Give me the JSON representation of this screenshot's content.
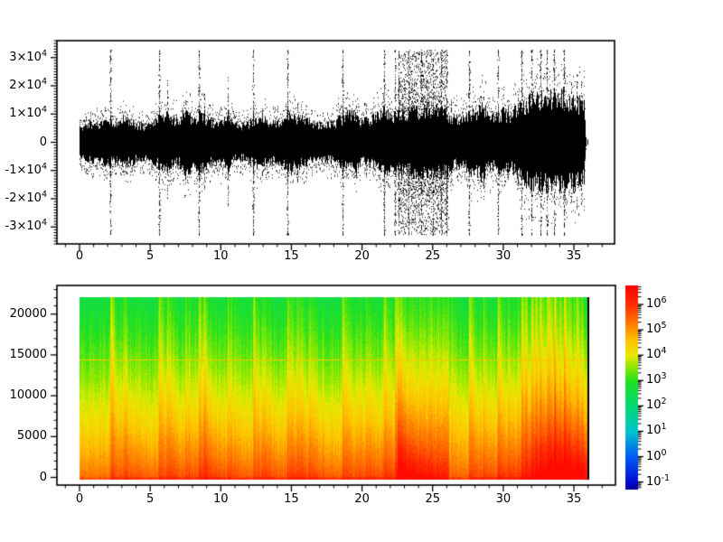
{
  "figure": {
    "background": "#ffffff",
    "axis_color": "#000000",
    "font_color": "#000000"
  },
  "chart_data": [
    {
      "id": "waveform",
      "type": "line",
      "title": "",
      "xlabel": "",
      "ylabel": "",
      "xlim": [
        -1.6,
        37.9
      ],
      "ylim": [
        -36000,
        36000
      ],
      "x_ticks": [
        0,
        5,
        10,
        15,
        20,
        25,
        30,
        35
      ],
      "x_tick_labels": [
        "0",
        "5",
        "10",
        "15",
        "20",
        "25",
        "30",
        "35"
      ],
      "x_minor_step": 1,
      "y_ticks": [
        30000,
        20000,
        10000,
        0,
        -10000,
        -20000,
        -30000
      ],
      "y_tick_labels": [
        "3×10^4",
        "2×10^4",
        "1×10^4",
        "0",
        "-1×10^4",
        "-2×10^4",
        "-3×10^4"
      ],
      "y_minor_step": 1000,
      "grid": false,
      "line_color": "#000000",
      "sample_clip_value": 32767,
      "duration_seconds": 35.85,
      "envelope_step_seconds": 0.5,
      "envelope_peak_thousands": [
        5.5,
        6,
        6.5,
        6,
        7.5,
        6.5,
        8.5,
        7,
        6,
        5.5,
        6,
        7.5,
        9,
        8,
        7,
        11,
        7.5,
        9.5,
        8,
        6.5,
        7,
        9,
        6,
        5.5,
        6.5,
        8,
        8,
        6.5,
        6.5,
        8,
        9.5,
        8,
        7.5,
        6.5,
        6,
        6,
        6.5,
        8,
        9.5,
        9,
        7,
        7.5,
        8.5,
        10,
        9,
        10,
        10,
        10.5,
        11,
        12,
        11.5,
        10.5,
        10,
        8,
        8,
        9.5,
        10,
        12,
        8.5,
        9,
        10,
        8.5,
        12,
        13,
        14,
        14.5,
        15,
        15.5,
        16,
        15,
        14,
        13
      ],
      "clip_spike_times": [
        2.2,
        5.6,
        8.45,
        12.3,
        14.7,
        18.6,
        21.55,
        22.35,
        27.6,
        29.6,
        31.3,
        32.0,
        32.6,
        33.1,
        33.6,
        34.3
      ],
      "medium_spikes": [
        {
          "t": 6.2,
          "a": 20
        },
        {
          "t": 7.5,
          "a": 13
        },
        {
          "t": 8.8,
          "a": 16
        },
        {
          "t": 10.5,
          "a": 21
        },
        {
          "t": 12.9,
          "a": 11
        },
        {
          "t": 15.4,
          "a": 13
        },
        {
          "t": 19.6,
          "a": 12
        },
        {
          "t": 20.3,
          "a": 11
        },
        {
          "t": 26.3,
          "a": 14
        },
        {
          "t": 28.6,
          "a": 15
        },
        {
          "t": 30.3,
          "a": 12
        },
        {
          "t": 31.0,
          "a": 18
        },
        {
          "t": 34.8,
          "a": 20
        },
        {
          "t": 35.2,
          "a": 22
        },
        {
          "t": 35.5,
          "a": 20
        }
      ],
      "noise_burst": {
        "start": 22.5,
        "end": 26.1,
        "peak": 32767,
        "inner_lines": [
          22.6,
          23.3,
          24.2,
          25.0,
          25.6,
          26.0
        ]
      }
    },
    {
      "id": "spectrogram",
      "type": "heatmap",
      "title": "",
      "xlabel": "",
      "ylabel": "",
      "xlim": [
        -1.6,
        37.9
      ],
      "ylim": [
        -1000,
        23450
      ],
      "x_ticks": [
        0,
        5,
        10,
        15,
        20,
        25,
        30,
        35
      ],
      "x_tick_labels": [
        "0",
        "5",
        "10",
        "15",
        "20",
        "25",
        "30",
        "35"
      ],
      "x_minor_step": 1,
      "y_ticks": [
        0,
        5000,
        10000,
        15000,
        20000
      ],
      "y_tick_labels": [
        "0",
        "5000",
        "10000",
        "15000",
        "20000"
      ],
      "y_minor_step": 1000,
      "grid": false,
      "freq_max_hz": 22050,
      "base_log_power_low_freq": 5.5,
      "base_log_power_high_freq": 2.6,
      "strong_event_times": [
        2.2,
        5.6,
        8.45,
        12.3,
        14.7,
        18.6,
        21.55,
        22.35,
        27.6,
        29.6,
        31.3,
        32.0,
        32.6,
        33.1,
        33.6,
        34.3
      ],
      "weak_event_times": [
        3.1,
        6.2,
        7.5,
        8.8,
        10.5,
        12.9,
        15.4,
        16.2,
        19.6,
        20.3,
        26.3,
        28.6,
        30.3,
        31.0,
        31.6,
        32.3,
        33.3,
        34.0,
        34.6,
        35.0,
        35.2,
        35.5
      ],
      "loud_block": {
        "start": 22.5,
        "end": 26.1
      },
      "horizontal_line_hz": 14500,
      "end_column_color": "#000000",
      "colorbar": {
        "scale": "log10",
        "log_min": -1.3,
        "log_max": 6.75,
        "tick_labels": [
          "10^6",
          "10^5",
          "10^4",
          "10^3",
          "10^2",
          "10^1",
          "10^0",
          "10^-1"
        ],
        "tick_log_values": [
          6,
          5,
          4,
          3,
          2,
          1,
          0,
          -1
        ],
        "colormap": "jet",
        "color_anchors": [
          [
            -1.3,
            "#00008f"
          ],
          [
            -1.0,
            "#000acd"
          ],
          [
            0.0,
            "#005af8"
          ],
          [
            1.0,
            "#00c4cd"
          ],
          [
            2.0,
            "#00d876"
          ],
          [
            3.0,
            "#23e11e"
          ],
          [
            3.6,
            "#96e900"
          ],
          [
            4.0,
            "#e9e900"
          ],
          [
            4.6,
            "#ffc300"
          ],
          [
            5.0,
            "#ff9400"
          ],
          [
            5.6,
            "#ff5800"
          ],
          [
            6.0,
            "#ff2d00"
          ],
          [
            6.75,
            "#ff0000"
          ]
        ]
      }
    }
  ]
}
